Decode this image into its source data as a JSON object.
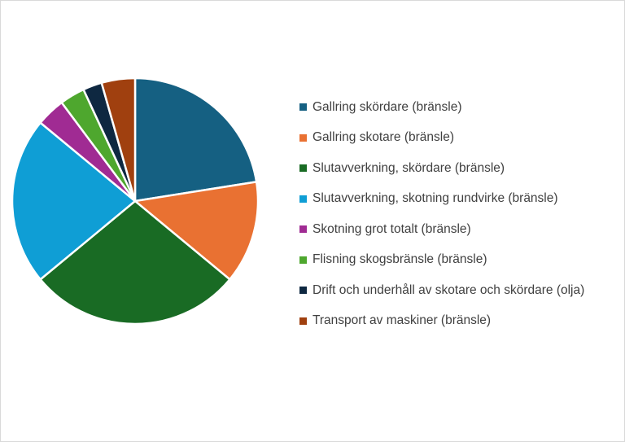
{
  "chart_data": {
    "type": "pie",
    "title": "",
    "legend_position": "right",
    "slices": [
      {
        "label": "Gallring skördare (bränsle)",
        "value": 22.5,
        "color": "#156082"
      },
      {
        "label": "Gallring skotare (bränsle)",
        "value": 13.5,
        "color": "#E97132"
      },
      {
        "label": "Slutavverkning, skördare (bränsle)",
        "value": 28.0,
        "color": "#196B24"
      },
      {
        "label": "Slutavverkning, skotning rundvirke (bränsle)",
        "value": 22.0,
        "color": "#0F9ED5"
      },
      {
        "label": "Skotning grot totalt (bränsle)",
        "value": 3.8,
        "color": "#A02B93"
      },
      {
        "label": "Flisning skogsbränsle (bränsle)",
        "value": 3.3,
        "color": "#4EA72E"
      },
      {
        "label": "Drift och underhåll av skotare och skördare (olja)",
        "value": 2.5,
        "color": "#0E2841"
      },
      {
        "label": "Transport av maskiner (bränsle)",
        "value": 4.4,
        "color": "#A0400F"
      }
    ]
  }
}
